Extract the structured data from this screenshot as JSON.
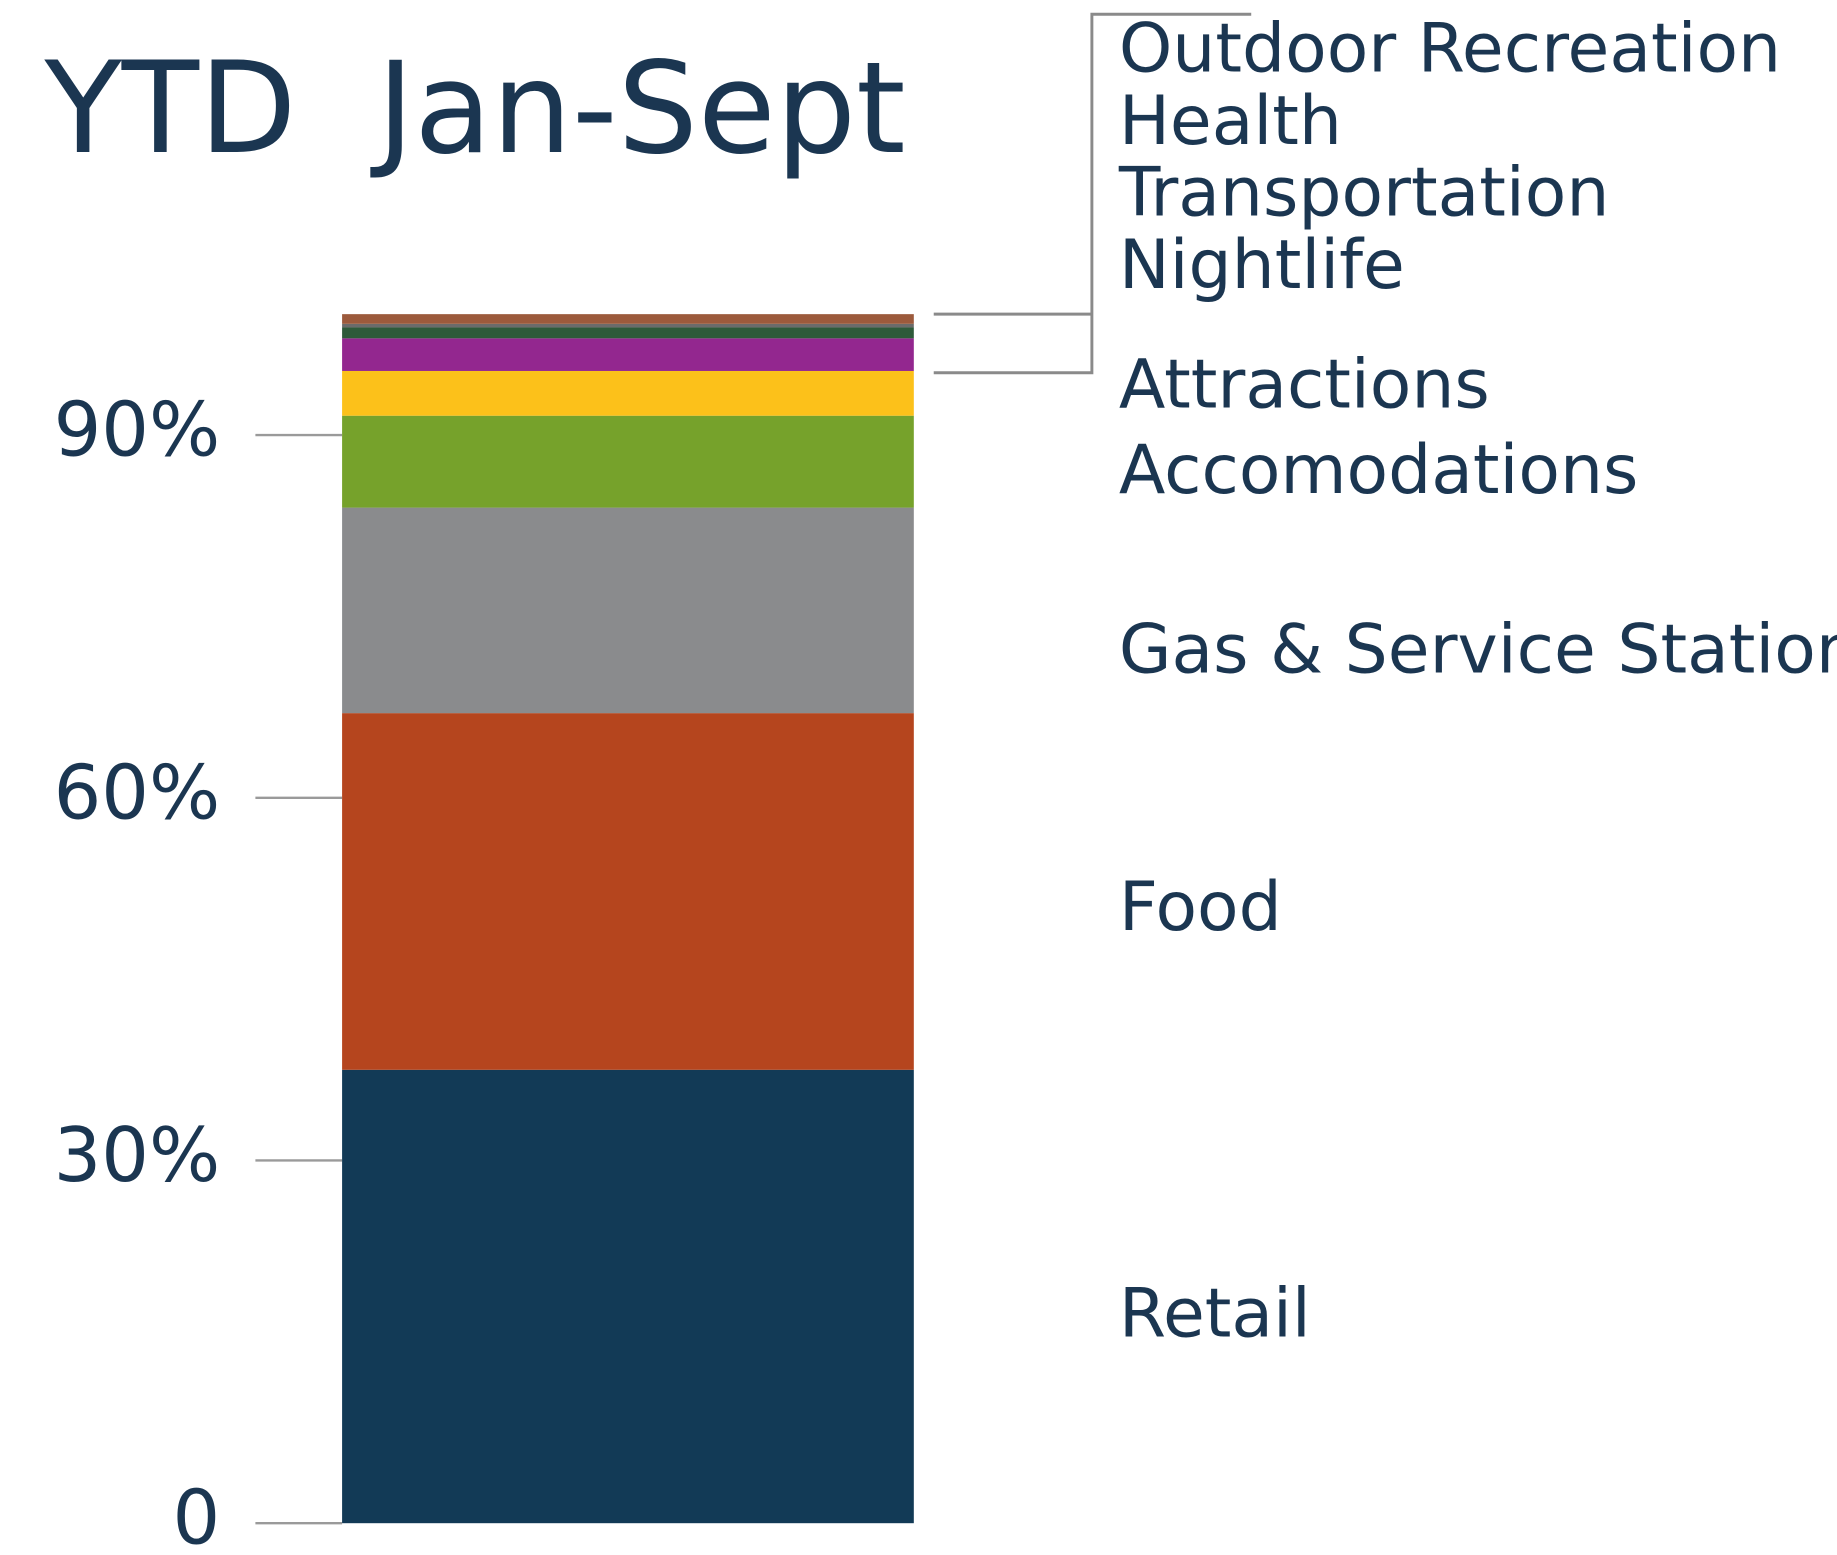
{
  "chart_data": {
    "type": "bar",
    "stacked": true,
    "title": "YTD  Jan-Sept",
    "categories": [
      null
    ],
    "series": [
      {
        "name": "Retail",
        "color": "#123a56",
        "values": [
          37.5
        ]
      },
      {
        "name": "Food",
        "color": "#b5451e",
        "values": [
          29.5
        ]
      },
      {
        "name": "Gas & Service Stations",
        "color": "#8a8b8d",
        "values": [
          17
        ]
      },
      {
        "name": "Accomodations",
        "color": "#76a22b",
        "values": [
          7.6
        ]
      },
      {
        "name": "Attractions",
        "color": "#fcc11a",
        "values": [
          3.7
        ]
      },
      {
        "name": "Nightlife",
        "color": "#93278f",
        "values": [
          2.7
        ]
      },
      {
        "name": "Transportation",
        "color": "#2e5a3a",
        "values": [
          0.9
        ]
      },
      {
        "name": "Health",
        "color": "#6b6b6b",
        "values": [
          0.3
        ]
      },
      {
        "name": "Outdoor Recreation",
        "color": "#9c5a3c",
        "values": [
          0.8
        ]
      }
    ],
    "ylim": [
      0,
      100
    ],
    "yticks": [
      0,
      {
        "value": 30,
        "label": "30%"
      },
      {
        "value": 60,
        "label": "60%"
      },
      {
        "value": 90,
        "label": "90%"
      }
    ]
  }
}
